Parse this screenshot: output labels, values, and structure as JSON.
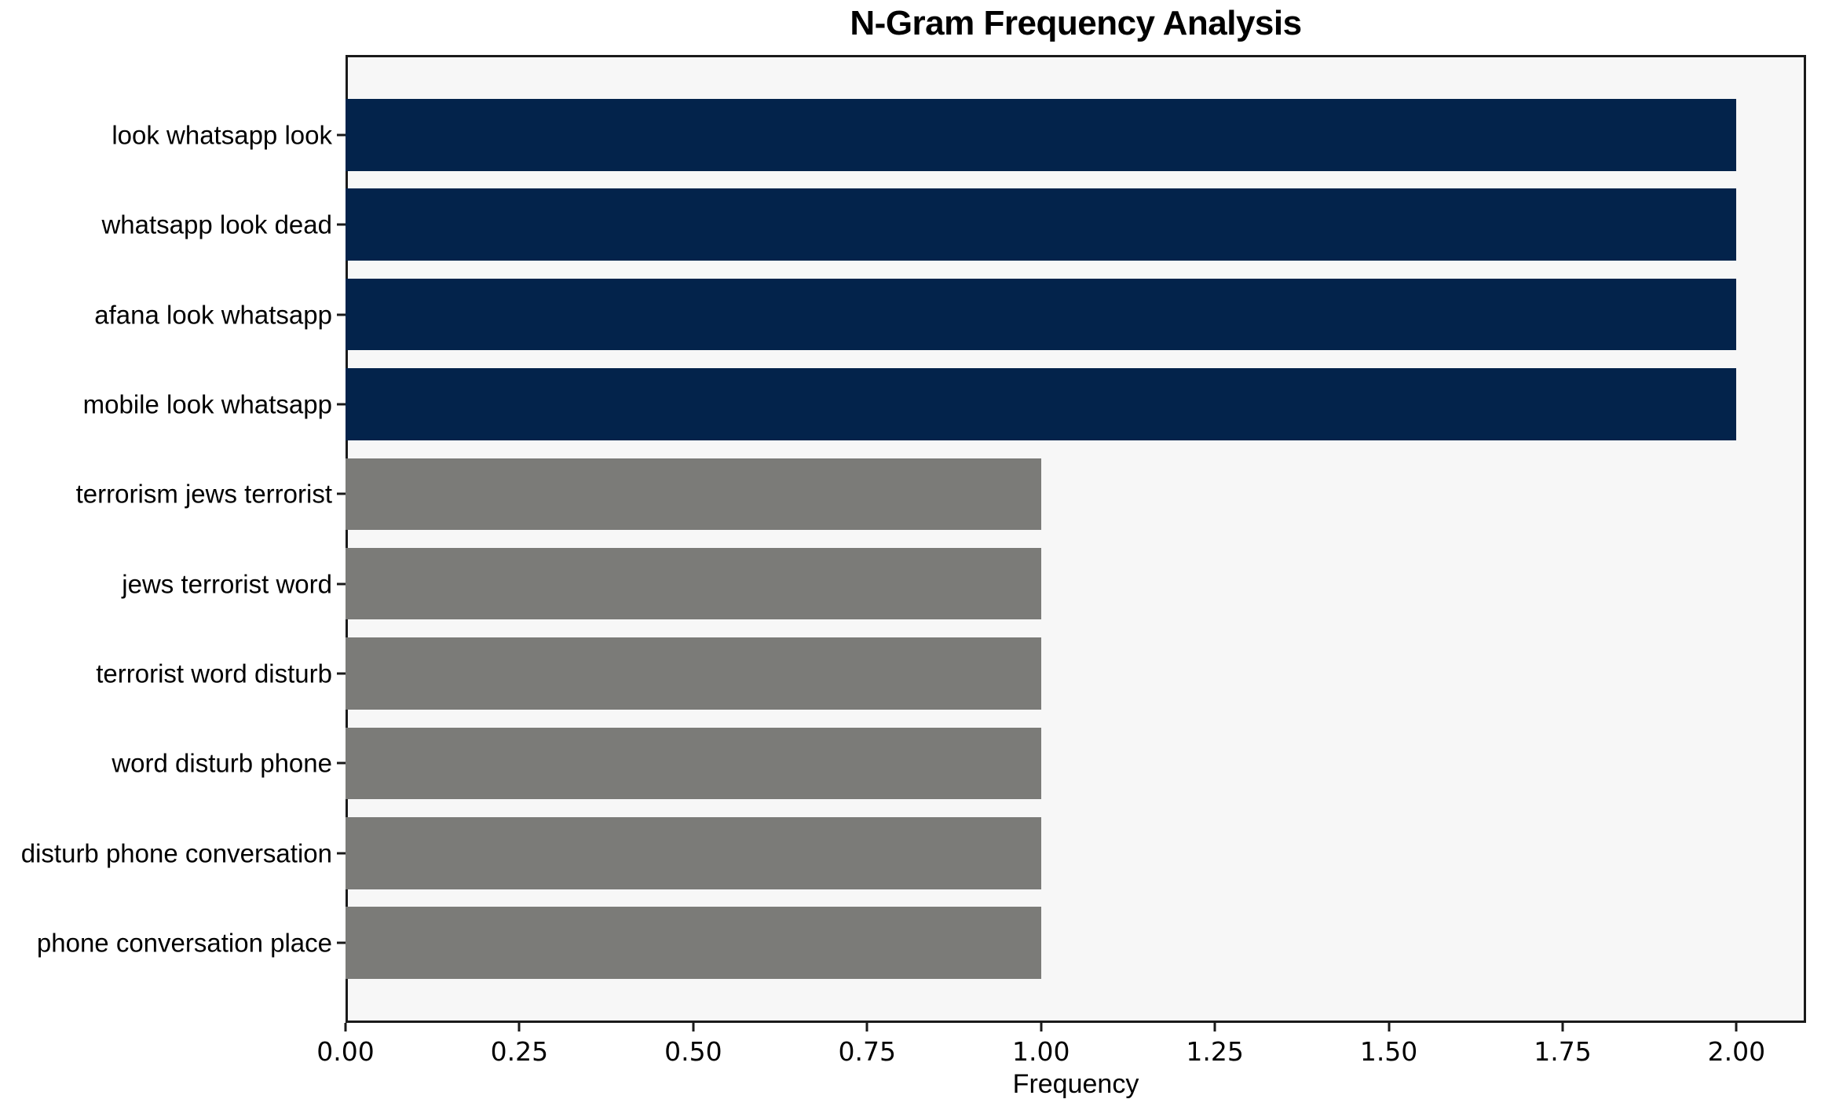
{
  "chart_data": {
    "type": "bar",
    "orientation": "horizontal",
    "title": "N-Gram Frequency Analysis",
    "xlabel": "Frequency",
    "ylabel": "",
    "categories": [
      "look whatsapp look",
      "whatsapp look dead",
      "afana look whatsapp",
      "mobile look whatsapp",
      "terrorism jews terrorist",
      "jews terrorist word",
      "terrorist word disturb",
      "word disturb phone",
      "disturb phone conversation",
      "phone conversation place"
    ],
    "values": [
      2,
      2,
      2,
      2,
      1,
      1,
      1,
      1,
      1,
      1
    ],
    "bar_colors": [
      "#03234b",
      "#03234b",
      "#03234b",
      "#03234b",
      "#7b7b78",
      "#7b7b78",
      "#7b7b78",
      "#7b7b78",
      "#7b7b78",
      "#7b7b78"
    ],
    "xlim": [
      0,
      2.1
    ],
    "xticks": [
      0,
      0.25,
      0.5,
      0.75,
      1,
      1.25,
      1.5,
      1.75,
      2
    ],
    "xtick_labels": [
      "0.00",
      "0.25",
      "0.50",
      "0.75",
      "1.00",
      "1.25",
      "1.50",
      "1.75",
      "2.00"
    ],
    "bar_height_fraction": 0.8,
    "y_edge_margin_units": 0.89,
    "grid": false,
    "legend": false
  },
  "colors": {
    "figure_background": "#ffffff",
    "plot_background": "#f7f7f7",
    "spine": "#1a1a1a",
    "tick": "#1a1a1a",
    "text": "#000000",
    "highlight_bar": "#03234b",
    "muted_bar": "#7b7b78"
  }
}
